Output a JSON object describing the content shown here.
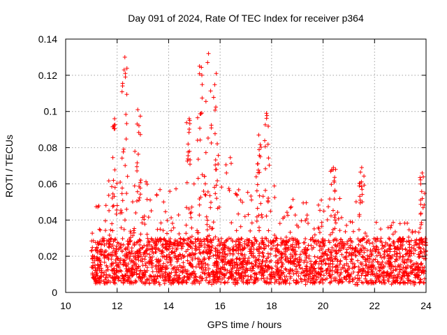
{
  "chart_data": {
    "type": "scatter",
    "title": "Day 091 of 2024, Rate Of TEC Index for receiver p364",
    "xlabel": "GPS time / hours",
    "ylabel": "ROTI / TECUs",
    "xlim": [
      10,
      24
    ],
    "ylim": [
      0,
      0.14
    ],
    "x_ticks": [
      10,
      12,
      14,
      16,
      18,
      20,
      22,
      24
    ],
    "x_tick_labels": [
      "10",
      "12",
      "14",
      "16",
      "18",
      "20",
      "22",
      "24"
    ],
    "y_ticks": [
      0,
      0.02,
      0.04,
      0.06,
      0.08,
      0.1,
      0.12,
      0.14
    ],
    "y_tick_labels": [
      "0",
      "0.02",
      "0.04",
      "0.06",
      "0.08",
      "0.1",
      "0.12",
      "0.14"
    ],
    "grid": true,
    "marker": "+",
    "marker_color": "#ff0000",
    "series": [
      {
        "name": "ROTI",
        "data_range_hours": [
          11.0,
          24.0
        ],
        "typical_band": [
          0.005,
          0.03
        ],
        "peaks": [
          {
            "x": 12.3,
            "y": 0.13
          },
          {
            "x": 12.8,
            "y": 0.101
          },
          {
            "x": 11.9,
            "y": 0.096
          },
          {
            "x": 14.8,
            "y": 0.096
          },
          {
            "x": 15.2,
            "y": 0.125
          },
          {
            "x": 15.55,
            "y": 0.132
          },
          {
            "x": 15.85,
            "y": 0.121
          },
          {
            "x": 17.8,
            "y": 0.099
          },
          {
            "x": 17.5,
            "y": 0.087
          },
          {
            "x": 20.4,
            "y": 0.069
          },
          {
            "x": 21.5,
            "y": 0.069
          },
          {
            "x": 23.85,
            "y": 0.066
          },
          {
            "x": 23.05,
            "y": 0.028
          }
        ]
      }
    ]
  }
}
